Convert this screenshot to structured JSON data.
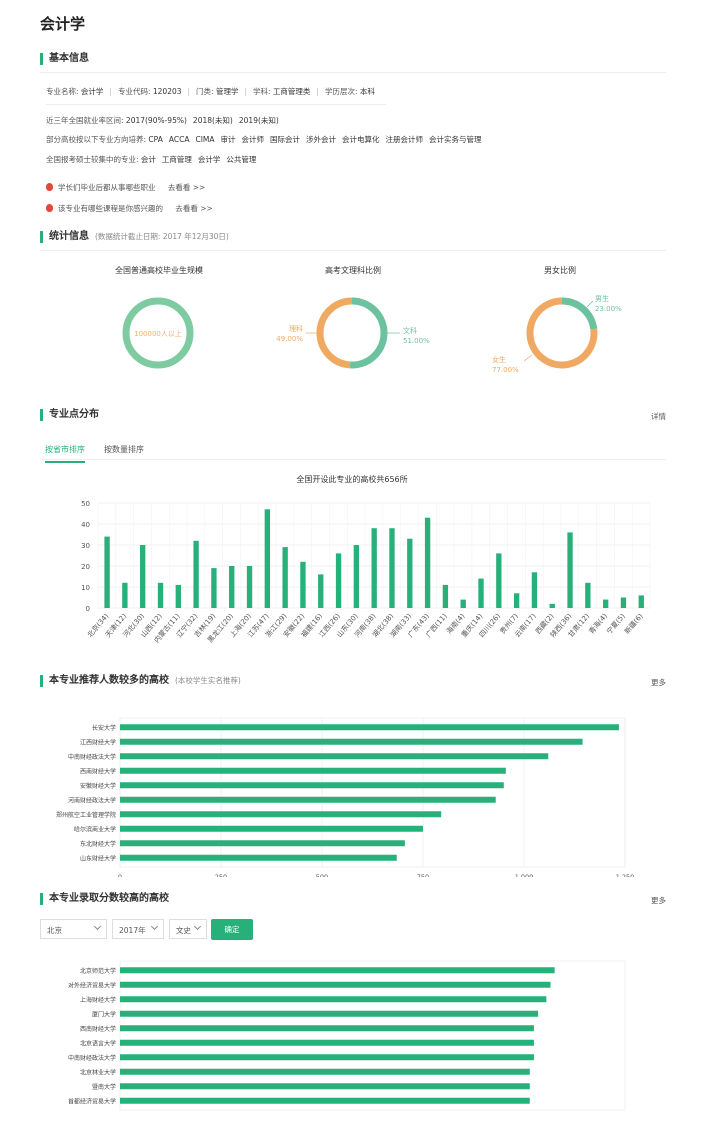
{
  "page_title": "会计学",
  "basic": {
    "heading": "基本信息",
    "row1": [
      {
        "label": "专业名称:",
        "value": "会计学"
      },
      {
        "label": "专业代码:",
        "value": "120203"
      },
      {
        "label": "门类:",
        "value": "管理学"
      },
      {
        "label": "学科:",
        "value": "工商管理类"
      },
      {
        "label": "学历层次:",
        "value": "本科"
      }
    ],
    "employment_label": "近三年全国就业率区间:",
    "employment_values": [
      "2017(90%-95%)",
      "2018(未知)",
      "2019(未知)"
    ],
    "directions_label": "部分高校按以下专业方向培养:",
    "directions": [
      "CPA",
      "ACCA",
      "CIMA",
      "审计",
      "会计师",
      "国际会计",
      "涉外会计",
      "会计电算化",
      "注册会计师",
      "会计实务与管理"
    ],
    "grad_label": "全国报考硕士较集中的专业:",
    "grad_majors": [
      "会计",
      "工商管理",
      "会计学",
      "公共管理"
    ],
    "links": [
      {
        "text": "学长们毕业后都从事哪些职业",
        "action": "去看看 >>"
      },
      {
        "text": "该专业有哪些课程是你感兴趣的",
        "action": "去看看 >>"
      }
    ]
  },
  "stats": {
    "heading": "统计信息",
    "note": "(数据统计截止日期: 2017 年12月30日)",
    "grad_scale": {
      "title": "全国普通高校毕业生规模",
      "value": "100000人以上",
      "color": "#7ecba1"
    },
    "arts_science": {
      "title": "高考文理科比例",
      "science_label": "理科",
      "science_pct": "49.00%",
      "science_value": 49,
      "arts_label": "文科",
      "arts_pct": "51.00%",
      "arts_value": 51,
      "science_color": "#f0a962",
      "arts_color": "#6cc19e"
    },
    "gender": {
      "title": "男女比例",
      "male_label": "男生",
      "male_pct": "23.00%",
      "male_value": 23,
      "female_label": "女生",
      "female_pct": "77.00%",
      "female_value": 77,
      "male_color": "#6cc19e",
      "female_color": "#f0a962"
    }
  },
  "distribution": {
    "heading": "专业点分布",
    "detail_link": "详情",
    "tabs": [
      "按省市排序",
      "按数量排序"
    ]
  },
  "recommend": {
    "heading": "本专业推荐人数较多的高校",
    "note": "(本校学生实名推荐)",
    "more": "更多"
  },
  "admission": {
    "heading": "本专业录取分数较高的高校",
    "more": "更多",
    "filters": {
      "province": "北京",
      "year": "2017年",
      "subject": "文史"
    },
    "confirm": "确定"
  },
  "accent_color": "#27b07a",
  "chart_data": [
    {
      "type": "bar",
      "title": "全国开设此专业的高校共656所",
      "categories": [
        "北京(34)",
        "天津(12)",
        "河北(30)",
        "山西(12)",
        "内蒙古(11)",
        "辽宁(32)",
        "吉林(19)",
        "黑龙江(20)",
        "上海(20)",
        "江苏(47)",
        "浙江(29)",
        "安徽(22)",
        "福建(16)",
        "江西(26)",
        "山东(30)",
        "河南(38)",
        "湖北(38)",
        "湖南(33)",
        "广东(43)",
        "广西(11)",
        "海南(4)",
        "重庆(14)",
        "四川(26)",
        "贵州(7)",
        "云南(17)",
        "西藏(2)",
        "陕西(36)",
        "甘肃(12)",
        "青海(4)",
        "宁夏(5)",
        "新疆(6)"
      ],
      "values": [
        34,
        12,
        30,
        12,
        11,
        32,
        19,
        20,
        20,
        47,
        29,
        22,
        16,
        26,
        30,
        38,
        38,
        33,
        43,
        11,
        4,
        14,
        26,
        7,
        17,
        2,
        36,
        12,
        4,
        5,
        6
      ],
      "ylim": [
        0,
        50
      ],
      "yticks": [
        "0",
        "10",
        "20",
        "30",
        "40",
        "50"
      ],
      "grid": true,
      "color": "#27b07a"
    },
    {
      "type": "bar",
      "orientation": "horizontal",
      "categories": [
        "长安大学",
        "江西财经大学",
        "中南财经政法大学",
        "西南财经大学",
        "安徽财经大学",
        "河南财经政法大学",
        "郑州航空工业管理学院",
        "哈尔滨商业大学",
        "东北财经大学",
        "山东财经大学"
      ],
      "values": [
        1235,
        1145,
        1060,
        955,
        950,
        930,
        795,
        750,
        705,
        685
      ],
      "xlim": [
        0,
        1250
      ],
      "xticks": [
        "0",
        "250",
        "500",
        "750",
        "1,000",
        "1,250"
      ],
      "grid": true,
      "color": "#27b07a"
    },
    {
      "type": "bar",
      "orientation": "horizontal",
      "categories": [
        "北京师范大学",
        "对外经济贸易大学",
        "上海财经大学",
        "厦门大学",
        "西南财经大学",
        "北京语言大学",
        "中南财经政法大学",
        "北京林业大学",
        "暨南大学",
        "首都经济贸易大学"
      ],
      "values": [
        105,
        104,
        103,
        101,
        100,
        100,
        100,
        99,
        99,
        99
      ],
      "xlim": [
        0,
        122
      ],
      "grid": true,
      "color": "#27b07a"
    }
  ]
}
